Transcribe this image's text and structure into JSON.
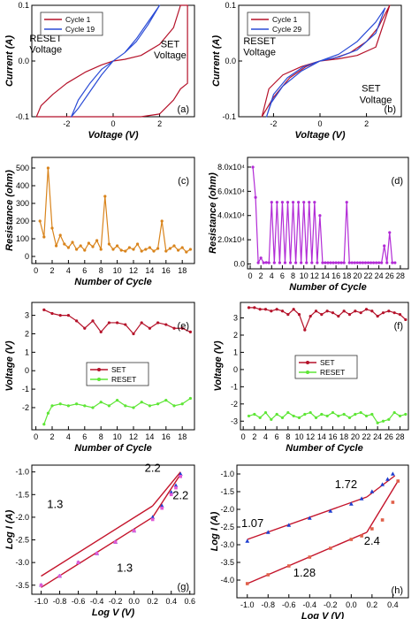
{
  "chart_data": [
    {
      "panel": "(a)",
      "type": "line",
      "xlabel": "Voltage (V)",
      "ylabel": "Current (A)",
      "xlim": [
        -3.5,
        3.5
      ],
      "ylim": [
        -0.1,
        0.1
      ],
      "xticks": [
        -2,
        0,
        2
      ],
      "yticks": [
        -0.1,
        0,
        0.1
      ],
      "legend": "top-left",
      "series": [
        {
          "name": "Cycle 1",
          "color": "#b5122a",
          "x": [
            0,
            0.5,
            1.2,
            2.0,
            2.6,
            2.9,
            3.2,
            3.2,
            2.9,
            2.6,
            2.0,
            1.2,
            0.5,
            0,
            -0.5,
            -1.2,
            -2.0,
            -2.6,
            -3.0,
            -3.3,
            -3.3,
            -3.1,
            -2.6,
            -2.0,
            -1.2,
            -0.5,
            0
          ],
          "y": [
            0,
            0.003,
            0.01,
            0.03,
            0.06,
            0.1,
            0.1,
            -0.04,
            -0.05,
            -0.07,
            -0.095,
            -0.1,
            -0.1,
            -0.1,
            -0.1,
            -0.1,
            -0.1,
            -0.1,
            -0.1,
            -0.1,
            -0.1,
            -0.08,
            -0.06,
            -0.04,
            -0.02,
            -0.007,
            0
          ]
        },
        {
          "name": "Cycle 19",
          "color": "#2a4bd6",
          "x": [
            0,
            0.5,
            1.0,
            1.5,
            2.0,
            1.5,
            1.0,
            0.5,
            0,
            -0.5,
            -1.0,
            -1.5,
            -1.8,
            -1.5,
            -1.0,
            -0.5,
            0
          ],
          "y": [
            0,
            0.015,
            0.035,
            0.065,
            0.1,
            0.07,
            0.04,
            0.015,
            0,
            -0.025,
            -0.055,
            -0.085,
            -0.1,
            -0.07,
            -0.04,
            -0.015,
            0
          ]
        }
      ],
      "annotations": [
        {
          "text": "RESET",
          "x": -2.9,
          "y": 0.035
        },
        {
          "text": "Voltage",
          "x": -2.9,
          "y": 0.015
        },
        {
          "text": "SET",
          "x": 2.45,
          "y": 0.025
        },
        {
          "text": "Voltage",
          "x": 2.45,
          "y": 0.005
        }
      ]
    },
    {
      "panel": "(b)",
      "type": "line",
      "xlabel": "Voltage (V)",
      "ylabel": "Current (A)",
      "xlim": [
        -3.5,
        3.5
      ],
      "ylim": [
        -0.1,
        0.1
      ],
      "xticks": [
        -2,
        0,
        2
      ],
      "yticks": [
        -0.1,
        0,
        0.1
      ],
      "legend": "top-left",
      "series": [
        {
          "name": "Cycle 1",
          "color": "#b5122a",
          "x": [
            0,
            0.8,
            1.6,
            2.4,
            3.0,
            3.0,
            2.5,
            2.0,
            1.3,
            0.6,
            0,
            -0.6,
            -1.3,
            -2.0,
            -2.5,
            -2.5,
            -2.2,
            -1.6,
            -0.8,
            0
          ],
          "y": [
            0,
            0.004,
            0.01,
            0.025,
            0.1,
            0.1,
            0.06,
            0.035,
            0.015,
            0.005,
            0,
            -0.01,
            -0.03,
            -0.065,
            -0.1,
            -0.1,
            -0.05,
            -0.025,
            -0.01,
            0
          ]
        },
        {
          "name": "Cycle 29",
          "color": "#2a4bd6",
          "x": [
            0,
            0.8,
            1.6,
            2.4,
            2.8,
            2.4,
            1.6,
            0.8,
            0,
            -0.8,
            -1.6,
            -2.1,
            -2.3,
            -2.0,
            -1.4,
            -0.7,
            0
          ],
          "y": [
            0,
            0.007,
            0.02,
            0.05,
            0.095,
            0.07,
            0.035,
            0.012,
            0,
            -0.018,
            -0.045,
            -0.075,
            -0.1,
            -0.06,
            -0.03,
            -0.01,
            0
          ]
        }
      ],
      "annotations": [
        {
          "text": "RESET",
          "x": -2.6,
          "y": 0.03
        },
        {
          "text": "Voltage",
          "x": -2.6,
          "y": 0.01
        },
        {
          "text": "SET",
          "x": 2.2,
          "y": -0.055
        },
        {
          "text": "Voltage",
          "x": 2.4,
          "y": -0.075
        }
      ]
    },
    {
      "panel": "(c)",
      "type": "line",
      "xlabel": "Number of Cycle",
      "ylabel": "Resistance (ohm)",
      "xlim": [
        -0.5,
        19.5
      ],
      "ylim": [
        -40,
        560
      ],
      "xticks": [
        0,
        2,
        4,
        6,
        8,
        10,
        12,
        14,
        16,
        18
      ],
      "yticks": [
        0,
        100,
        200,
        300,
        400,
        500
      ],
      "series": [
        {
          "name": "",
          "color": "#d9841c",
          "x": [
            0.5,
            1.0,
            1.5,
            2.0,
            2.5,
            3.0,
            3.5,
            4.0,
            4.5,
            5.0,
            5.5,
            6.0,
            6.5,
            7.0,
            7.5,
            8.0,
            8.5,
            9.0,
            9.5,
            10.0,
            10.5,
            11.0,
            11.5,
            12.0,
            12.5,
            13.0,
            13.5,
            14.0,
            14.5,
            15.0,
            15.5,
            16.0,
            16.5,
            17.0,
            17.5,
            18.0,
            18.5,
            19.0
          ],
          "y": [
            200,
            110,
            500,
            160,
            60,
            120,
            70,
            50,
            80,
            40,
            60,
            35,
            75,
            55,
            90,
            40,
            340,
            70,
            40,
            60,
            35,
            30,
            50,
            40,
            70,
            30,
            40,
            50,
            30,
            45,
            200,
            30,
            45,
            60,
            35,
            50,
            25,
            40
          ]
        }
      ]
    },
    {
      "panel": "(d)",
      "type": "line",
      "xlabel": "Number of Cycle",
      "ylabel": "Resistance (ohm)",
      "xlim": [
        -0.5,
        29.5
      ],
      "ylim": [
        -4000,
        88000
      ],
      "xticks": [
        0,
        2,
        4,
        6,
        8,
        10,
        12,
        14,
        16,
        18,
        20,
        22,
        24,
        26,
        28
      ],
      "yticks": [
        0,
        20000,
        40000,
        60000,
        80000
      ],
      "yticklabels": [
        "0.0",
        "2.0x10⁴",
        "4.0x10⁴",
        "6.0x10⁴",
        "8.0x10⁴"
      ],
      "series": [
        {
          "name": "",
          "color": "#b22cd6",
          "x": [
            0.5,
            1.0,
            1.5,
            2.0,
            2.5,
            3.0,
            3.5,
            4.0,
            4.5,
            5.0,
            5.5,
            6.0,
            6.5,
            7.0,
            7.5,
            8.0,
            8.5,
            9.0,
            9.5,
            10.0,
            10.5,
            11.0,
            11.5,
            12.0,
            12.5,
            13.0,
            13.5,
            14.0,
            14.5,
            15.0,
            15.5,
            16.0,
            16.5,
            17.0,
            17.5,
            18.0,
            18.5,
            19.0,
            19.5,
            20.0,
            20.5,
            21.0,
            21.5,
            22.0,
            22.5,
            23.0,
            23.5,
            24.0,
            24.5,
            25.0,
            25.5,
            26.0,
            26.5,
            27.0
          ],
          "y": [
            80000,
            55000,
            1000,
            5000,
            1000,
            1200,
            1000,
            51000,
            1000,
            51000,
            1000,
            51000,
            1000,
            51000,
            1000,
            51000,
            1000,
            51000,
            1000,
            51000,
            1000,
            51000,
            1000,
            51000,
            1000,
            40000,
            1000,
            1000,
            1000,
            1000,
            1000,
            1000,
            1000,
            1000,
            1000,
            51000,
            1000,
            1000,
            1000,
            1000,
            1000,
            1000,
            1000,
            1000,
            1000,
            1000,
            1000,
            1000,
            1000,
            15000,
            1000,
            26000,
            1000,
            1000
          ]
        }
      ]
    },
    {
      "panel": "(e)",
      "type": "line",
      "xlabel": "Number of Cycle",
      "ylabel": "Voltage (V)",
      "xlim": [
        -0.5,
        19.5
      ],
      "ylim": [
        -3.2,
        3.7
      ],
      "xticks": [
        0,
        2,
        4,
        6,
        8,
        10,
        12,
        14,
        16,
        18
      ],
      "yticks": [
        -2,
        -1,
        0,
        1,
        2,
        3
      ],
      "legend": "center",
      "series": [
        {
          "name": "SET",
          "color": "#b5122a",
          "x": [
            1,
            2,
            3,
            4,
            5,
            6,
            7,
            8,
            9,
            10,
            11,
            12,
            13,
            14,
            15,
            16,
            17,
            18,
            19
          ],
          "y": [
            3.3,
            3.1,
            3.0,
            3.0,
            2.7,
            2.3,
            2.7,
            2.1,
            2.6,
            2.6,
            2.5,
            2.0,
            2.6,
            2.3,
            2.6,
            2.5,
            2.3,
            2.3,
            2.1
          ]
        },
        {
          "name": "RESET",
          "color": "#5ee636",
          "x": [
            1,
            1.5,
            2,
            3,
            4,
            5,
            6,
            7,
            8,
            9,
            10,
            11,
            12,
            13,
            14,
            15,
            16,
            17,
            18,
            19
          ],
          "y": [
            -2.9,
            -2.3,
            -1.9,
            -1.8,
            -1.9,
            -1.8,
            -1.9,
            -2.0,
            -1.7,
            -1.9,
            -1.6,
            -1.9,
            -2.0,
            -1.7,
            -1.9,
            -1.8,
            -1.6,
            -1.9,
            -1.8,
            -1.5
          ]
        }
      ]
    },
    {
      "panel": "(f)",
      "type": "line",
      "xlabel": "Number of Cycle",
      "ylabel": "Voltage (V)",
      "xlim": [
        -0.5,
        29.5
      ],
      "ylim": [
        -3.5,
        3.9
      ],
      "xticks": [
        0,
        2,
        4,
        6,
        8,
        10,
        12,
        14,
        16,
        18,
        20,
        22,
        24,
        26,
        28
      ],
      "yticks": [
        -3,
        -2,
        -1,
        0,
        1,
        2,
        3
      ],
      "legend": "center",
      "series": [
        {
          "name": "SET",
          "color": "#b5122a",
          "x": [
            1,
            2,
            3,
            4,
            5,
            6,
            7,
            8,
            9,
            10,
            11,
            12,
            13,
            14,
            15,
            16,
            17,
            18,
            19,
            20,
            21,
            22,
            23,
            24,
            25,
            26,
            27,
            28,
            29
          ],
          "y": [
            3.6,
            3.6,
            3.5,
            3.5,
            3.4,
            3.5,
            3.4,
            3.2,
            3.5,
            3.2,
            2.3,
            3.1,
            3.4,
            3.2,
            3.4,
            3.3,
            3.1,
            3.4,
            3.2,
            3.4,
            3.3,
            3.5,
            3.4,
            3.1,
            3.3,
            3.4,
            3.3,
            3.2,
            2.9
          ]
        },
        {
          "name": "RESET",
          "color": "#5ee636",
          "x": [
            1,
            2,
            3,
            4,
            5,
            6,
            7,
            8,
            9,
            10,
            11,
            12,
            13,
            14,
            15,
            16,
            17,
            18,
            19,
            20,
            21,
            22,
            23,
            24,
            25,
            26,
            27,
            28,
            29
          ],
          "y": [
            -2.7,
            -2.6,
            -2.8,
            -2.5,
            -2.9,
            -2.6,
            -2.8,
            -2.5,
            -2.7,
            -2.8,
            -2.6,
            -2.5,
            -2.8,
            -2.6,
            -2.7,
            -2.5,
            -2.7,
            -2.6,
            -2.8,
            -2.6,
            -2.5,
            -2.7,
            -2.6,
            -3.1,
            -3.0,
            -2.9,
            -2.5,
            -2.7,
            -2.6
          ]
        }
      ]
    },
    {
      "panel": "(g)",
      "type": "scatter",
      "xlabel": "Log V (V)",
      "ylabel": "Log I (A)",
      "xlim": [
        -1.1,
        0.65
      ],
      "ylim": [
        -3.7,
        -0.85
      ],
      "xticks": [
        -1.0,
        -0.8,
        -0.6,
        -0.4,
        -0.2,
        0.0,
        0.2,
        0.4,
        0.6
      ],
      "yticks": [
        -3.5,
        -3.0,
        -2.5,
        -2.0,
        -1.5,
        -1.0
      ],
      "series": [
        {
          "name": "",
          "color": "#1f3fd0",
          "x": [
            -1.0,
            -0.8,
            -0.6,
            -0.4,
            -0.2,
            0.0,
            0.2,
            0.3,
            0.4,
            0.45,
            0.5
          ],
          "y": [
            -3.5,
            -3.3,
            -3.0,
            -2.8,
            -2.55,
            -2.3,
            -2.0,
            -1.75,
            -1.45,
            -1.3,
            -1.05
          ]
        },
        {
          "name": "",
          "color": "#e05bd6",
          "x": [
            -1.0,
            -0.8,
            -0.6,
            -0.4,
            -0.2,
            0.0,
            0.2,
            0.3,
            0.4,
            0.45,
            0.5
          ],
          "y": [
            -3.5,
            -3.3,
            -3.0,
            -2.8,
            -2.55,
            -2.3,
            -2.05,
            -1.8,
            -1.5,
            -1.35,
            -1.1
          ]
        }
      ],
      "fits": [
        {
          "x": [
            -1.0,
            0.2
          ],
          "y": [
            -3.3,
            -1.75
          ]
        },
        {
          "x": [
            0.2,
            0.5
          ],
          "y": [
            -1.75,
            -1.0
          ]
        },
        {
          "x": [
            -1.0,
            0.2
          ],
          "y": [
            -3.55,
            -2.0
          ]
        },
        {
          "x": [
            0.2,
            0.5
          ],
          "y": [
            -2.0,
            -1.05
          ]
        }
      ],
      "annotations": [
        {
          "text": "2.2",
          "x": 0.2,
          "y": -1.0
        },
        {
          "text": "1.3",
          "x": -0.85,
          "y": -1.8
        },
        {
          "text": "2.2",
          "x": 0.5,
          "y": -1.6
        },
        {
          "text": "1.3",
          "x": -0.1,
          "y": -3.2
        }
      ]
    },
    {
      "panel": "(h)",
      "type": "scatter",
      "xlabel": "Log V (V)",
      "ylabel": "Log I (A)",
      "xlim": [
        -1.1,
        0.55
      ],
      "ylim": [
        -4.5,
        -0.75
      ],
      "xticks": [
        -1.0,
        -0.8,
        -0.6,
        -0.4,
        -0.2,
        0.0,
        0.2,
        0.4
      ],
      "yticks": [
        -4.0,
        -3.5,
        -3.0,
        -2.5,
        -2.0,
        -1.5,
        -1.0
      ],
      "series": [
        {
          "name": "",
          "color": "#1f3fd0",
          "x": [
            -1.0,
            -0.8,
            -0.6,
            -0.4,
            -0.2,
            0.0,
            0.1,
            0.2,
            0.3,
            0.35,
            0.4
          ],
          "y": [
            -2.9,
            -2.65,
            -2.45,
            -2.25,
            -2.05,
            -1.85,
            -1.7,
            -1.5,
            -1.3,
            -1.15,
            -1.0
          ]
        },
        {
          "name": "",
          "color": "#e0604a",
          "x": [
            -1.0,
            -0.8,
            -0.6,
            -0.4,
            -0.2,
            0.0,
            0.1,
            0.2,
            0.3,
            0.4,
            0.45
          ],
          "y": [
            -4.1,
            -3.85,
            -3.6,
            -3.35,
            -3.1,
            -2.85,
            -2.75,
            -2.55,
            -2.3,
            -1.8,
            -1.2
          ]
        }
      ],
      "fits": [
        {
          "x": [
            -1.0,
            0.15
          ],
          "y": [
            -2.85,
            -1.65
          ]
        },
        {
          "x": [
            0.15,
            0.42
          ],
          "y": [
            -1.65,
            -1.05
          ]
        },
        {
          "x": [
            -1.0,
            0.15
          ],
          "y": [
            -4.1,
            -2.65
          ]
        },
        {
          "x": [
            0.15,
            0.45
          ],
          "y": [
            -2.65,
            -1.2
          ]
        }
      ],
      "annotations": [
        {
          "text": "1.72",
          "x": -0.05,
          "y": -1.4
        },
        {
          "text": "1.07",
          "x": -0.95,
          "y": -2.5
        },
        {
          "text": "2.4",
          "x": 0.2,
          "y": -3.0
        },
        {
          "text": "1.28",
          "x": -0.45,
          "y": -3.9
        }
      ]
    }
  ]
}
